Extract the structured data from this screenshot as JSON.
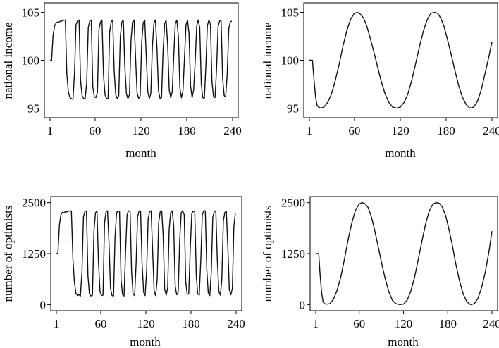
{
  "chart_data": [
    {
      "id": "income-fast",
      "type": "line",
      "xlabel": "month",
      "ylabel": "national income",
      "xlim": [
        1,
        240
      ],
      "ylim": [
        94,
        106
      ],
      "xticks": [
        1,
        60,
        120,
        180,
        240
      ],
      "xtick_labels": [
        "1",
        "60",
        "120",
        "180",
        "240"
      ],
      "yticks": [
        95,
        100,
        105
      ],
      "ytick_labels": [
        "95",
        "100",
        "105"
      ],
      "series": [
        {
          "name": "national income",
          "x": [
            1,
            3,
            5,
            7,
            9,
            11,
            13,
            15,
            17,
            19,
            21,
            23,
            25,
            27,
            29,
            31,
            33,
            35,
            37,
            39,
            41,
            43,
            45,
            47,
            49,
            51,
            53,
            55,
            57,
            59,
            61,
            63,
            65,
            67,
            69,
            71,
            73,
            75,
            77,
            79,
            81,
            83,
            85,
            87,
            89,
            91,
            93,
            95,
            97,
            99,
            101,
            103,
            105,
            107,
            109,
            111,
            113,
            115,
            117,
            119,
            121,
            123,
            125,
            127,
            129,
            131,
            133,
            135,
            137,
            139,
            141,
            143,
            145,
            147,
            149,
            151,
            153,
            155,
            157,
            159,
            161,
            163,
            165,
            167,
            169,
            171,
            173,
            175,
            177,
            179,
            181,
            183,
            185,
            187,
            189,
            191,
            193,
            195,
            197,
            199,
            201,
            203,
            205,
            207,
            209,
            211,
            213,
            215,
            217,
            219,
            221,
            223,
            225,
            227,
            229,
            231,
            233,
            235,
            237,
            239
          ],
          "y": [
            100,
            100,
            102.6,
            103.6,
            103.9,
            104,
            104,
            104.1,
            104.1,
            104.2,
            104.2,
            98.6,
            96.7,
            96.1,
            96,
            95.9,
            98.6,
            103.7,
            104.1,
            104.2,
            97.9,
            96.3,
            96,
            96,
            97.6,
            103.4,
            104.1,
            104.2,
            97.2,
            96.2,
            96.1,
            96.6,
            103.2,
            104,
            104.2,
            98.4,
            96.4,
            96,
            96,
            102.9,
            104,
            104.2,
            98.9,
            96.4,
            96,
            96.3,
            102.5,
            104,
            104.2,
            99.2,
            96.5,
            96,
            96.4,
            102.1,
            104,
            104.2,
            100.2,
            96.6,
            96,
            96.3,
            101.8,
            103.9,
            104.2,
            100.5,
            96.7,
            96,
            96.5,
            101.4,
            103.9,
            104.2,
            101.3,
            96.8,
            96,
            96.1,
            101,
            103.8,
            104.2,
            101.6,
            96.9,
            96.1,
            96.7,
            100.6,
            103.8,
            104.2,
            102.5,
            97.1,
            96.1,
            96.8,
            100.2,
            103.7,
            104.2,
            102.8,
            97.3,
            96.1,
            96.9,
            99.8,
            103.6,
            104.2,
            103.4,
            97.5,
            96.1,
            96,
            99.4,
            103.6,
            104.2,
            103.8,
            97.8,
            96.2,
            96.1,
            99,
            103.5,
            104.1,
            104.1,
            98.1,
            96.3,
            96.2,
            98.6,
            103.3,
            104,
            104.1
          ]
        }
      ]
    },
    {
      "id": "income-slow",
      "type": "line",
      "xlabel": "month",
      "ylabel": "national income",
      "xlim": [
        1,
        240
      ],
      "ylim": [
        94,
        106
      ],
      "xticks": [
        1,
        60,
        120,
        180,
        240
      ],
      "xtick_labels": [
        "1",
        "60",
        "120",
        "180",
        "240"
      ],
      "yticks": [
        95,
        100,
        105
      ],
      "ytick_labels": [
        "95",
        "100",
        "105"
      ],
      "series": [
        {
          "name": "national income",
          "x": [
            1,
            3,
            5,
            7,
            9,
            11,
            13,
            16,
            20,
            25,
            30,
            35,
            40,
            45,
            50,
            55,
            60,
            64,
            68,
            72,
            76,
            80,
            85,
            90,
            95,
            100,
            105,
            110,
            115,
            120,
            125,
            130,
            135,
            140,
            145,
            150,
            155,
            160,
            165,
            169,
            173,
            177,
            181,
            186,
            191,
            196,
            201,
            206,
            211,
            216,
            221,
            226,
            231,
            236,
            240
          ],
          "y": [
            100,
            100,
            100,
            98,
            96.2,
            95.3,
            95.1,
            95,
            95.1,
            95.6,
            96.5,
            97.9,
            99.6,
            101.5,
            103.1,
            104.3,
            104.9,
            105,
            104.8,
            104.4,
            103.6,
            102.5,
            101,
            99.4,
            97.8,
            96.5,
            95.6,
            95.1,
            95,
            95.1,
            95.6,
            96.5,
            97.9,
            99.6,
            101.4,
            103,
            104.2,
            104.9,
            105,
            104.9,
            104.4,
            103.6,
            102.4,
            100.8,
            99.1,
            97.5,
            96.2,
            95.4,
            95,
            95.1,
            95.7,
            96.9,
            98.6,
            100.4,
            101.9
          ]
        }
      ]
    },
    {
      "id": "optimists-fast",
      "type": "line",
      "xlabel": "month",
      "ylabel": "number of optimists",
      "xlim": [
        1,
        240
      ],
      "ylim": [
        -150,
        2650
      ],
      "xticks": [
        1,
        60,
        120,
        180,
        240
      ],
      "xtick_labels": [
        "1",
        "60",
        "120",
        "180",
        "240"
      ],
      "yticks": [
        0,
        1250,
        2500
      ],
      "ytick_labels": [
        "0",
        "1250",
        "2500"
      ],
      "series": [
        {
          "name": "number of optimists",
          "x": [
            1,
            3,
            5,
            7,
            9,
            11,
            13,
            15,
            17,
            19,
            21,
            23,
            25,
            27,
            29,
            31,
            33,
            35,
            37,
            39,
            41,
            43,
            45,
            47,
            49,
            51,
            53,
            55,
            57,
            59,
            61,
            63,
            65,
            67,
            69,
            71,
            73,
            75,
            77,
            79,
            81,
            83,
            85,
            87,
            89,
            91,
            93,
            95,
            97,
            99,
            101,
            103,
            105,
            107,
            109,
            111,
            113,
            115,
            117,
            119,
            121,
            123,
            125,
            127,
            129,
            131,
            133,
            135,
            137,
            139,
            141,
            143,
            145,
            147,
            149,
            151,
            153,
            155,
            157,
            159,
            161,
            163,
            165,
            167,
            169,
            171,
            173,
            175,
            177,
            179,
            181,
            183,
            185,
            187,
            189,
            191,
            193,
            195,
            197,
            199,
            201,
            203,
            205,
            207,
            209,
            211,
            213,
            215,
            217,
            219,
            221,
            223,
            225,
            227,
            229,
            231,
            233,
            235,
            237,
            239
          ],
          "y": [
            1250,
            1250,
            1950,
            2200,
            2260,
            2250,
            2280,
            2270,
            2300,
            2290,
            2300,
            1100,
            550,
            280,
            220,
            240,
            210,
            800,
            2150,
            2280,
            2300,
            700,
            260,
            210,
            230,
            1800,
            2250,
            2300,
            1050,
            320,
            220,
            230,
            2000,
            2270,
            2300,
            1500,
            400,
            220,
            210,
            1650,
            2250,
            2300,
            2280,
            600,
            240,
            210,
            1300,
            2200,
            2300,
            2290,
            800,
            260,
            220,
            1000,
            2150,
            2300,
            2280,
            1000,
            300,
            220,
            800,
            2100,
            2280,
            2300,
            1300,
            330,
            220,
            600,
            2000,
            2270,
            2300,
            1700,
            380,
            230,
            400,
            1850,
            2260,
            2300,
            1950,
            450,
            240,
            300,
            1600,
            2250,
            2300,
            2200,
            560,
            250,
            260,
            1350,
            2230,
            2290,
            2280,
            700,
            260,
            230,
            1100,
            2200,
            2300,
            2300,
            850,
            280,
            220,
            800,
            2150,
            2280,
            2300,
            1100,
            320,
            230,
            600,
            2050,
            2260,
            2290,
            1400,
            360,
            240,
            400,
            1900,
            2250
          ]
        }
      ]
    },
    {
      "id": "optimists-slow",
      "type": "line",
      "xlabel": "month",
      "ylabel": "number of optimists",
      "xlim": [
        1,
        240
      ],
      "ylim": [
        -150,
        2650
      ],
      "xticks": [
        1,
        60,
        120,
        180,
        240
      ],
      "xtick_labels": [
        "1",
        "60",
        "120",
        "180",
        "240"
      ],
      "yticks": [
        0,
        1250,
        2500
      ],
      "ytick_labels": [
        "0",
        "1250",
        "2500"
      ],
      "series": [
        {
          "name": "number of optimists",
          "x": [
            1,
            3,
            5,
            7,
            9,
            11,
            13,
            16,
            20,
            25,
            30,
            35,
            40,
            45,
            50,
            55,
            60,
            64,
            68,
            72,
            76,
            80,
            85,
            90,
            95,
            100,
            105,
            110,
            115,
            120,
            125,
            130,
            135,
            140,
            145,
            150,
            155,
            160,
            165,
            169,
            173,
            177,
            181,
            186,
            191,
            196,
            201,
            206,
            211,
            216,
            221,
            226,
            231,
            236,
            240
          ],
          "y": [
            1250,
            1250,
            1250,
            700,
            280,
            60,
            20,
            10,
            20,
            130,
            350,
            680,
            1120,
            1600,
            2010,
            2320,
            2470,
            2500,
            2470,
            2380,
            2180,
            1900,
            1480,
            1050,
            650,
            320,
            100,
            20,
            0,
            10,
            110,
            330,
            670,
            1100,
            1550,
            1980,
            2300,
            2470,
            2500,
            2480,
            2380,
            2190,
            1900,
            1480,
            1000,
            580,
            260,
            70,
            0,
            20,
            150,
            420,
            800,
            1300,
            1800
          ]
        }
      ]
    }
  ]
}
